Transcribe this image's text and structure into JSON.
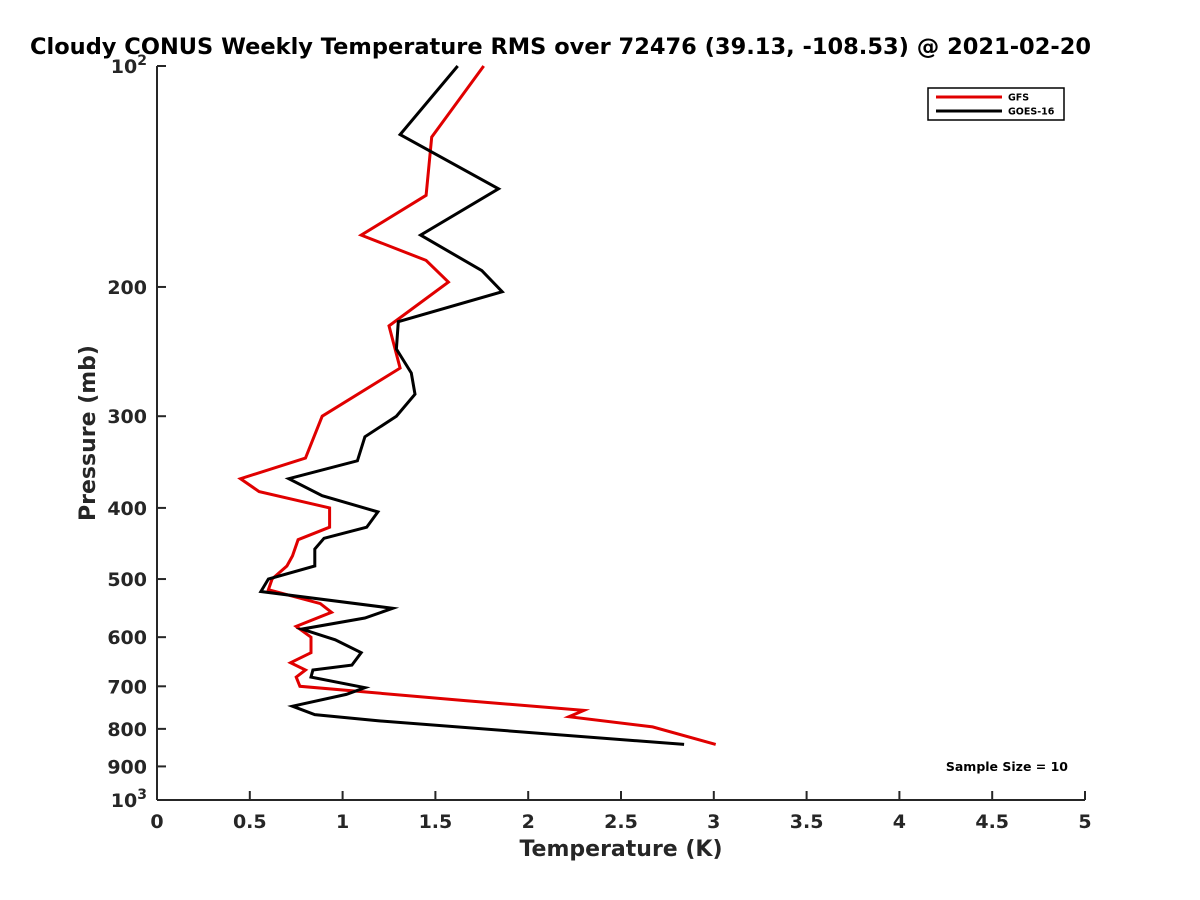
{
  "chart_data": {
    "type": "line",
    "title": "Cloudy CONUS Weekly Temperature RMS over 72476 (39.13, -108.53) @ 2021-02-20",
    "xlabel": "Temperature (K)",
    "ylabel": "Pressure (mb)",
    "xlim": [
      0,
      5
    ],
    "ylim": [
      100,
      1000
    ],
    "y_scale": "log",
    "y_reversed": true,
    "grid": false,
    "legend_position": "top-right",
    "x_ticks": [
      0,
      0.5,
      1,
      1.5,
      2,
      2.5,
      3,
      3.5,
      4,
      4.5,
      5
    ],
    "x_tick_labels": [
      "0",
      "0.5",
      "1",
      "1.5",
      "2",
      "2.5",
      "3",
      "3.5",
      "4",
      "4.5",
      "5"
    ],
    "y_ticks": [
      100,
      200,
      300,
      400,
      500,
      600,
      700,
      800,
      900,
      1000
    ],
    "y_tick_labels": [
      {
        "base": "10",
        "exp": "2"
      },
      {
        "base": "200",
        "exp": ""
      },
      {
        "base": "300",
        "exp": ""
      },
      {
        "base": "400",
        "exp": ""
      },
      {
        "base": "500",
        "exp": ""
      },
      {
        "base": "600",
        "exp": ""
      },
      {
        "base": "700",
        "exp": ""
      },
      {
        "base": "800",
        "exp": ""
      },
      {
        "base": "900",
        "exp": ""
      },
      {
        "base": "10",
        "exp": "3"
      }
    ],
    "annotation": "Sample Size = 10",
    "series": [
      {
        "name": "GFS",
        "color": "#e00000",
        "points": [
          [
            1.76,
            100
          ],
          [
            1.48,
            125
          ],
          [
            1.45,
            150
          ],
          [
            1.1,
            170
          ],
          [
            1.45,
            184
          ],
          [
            1.57,
            197
          ],
          [
            1.25,
            226
          ],
          [
            1.31,
            258
          ],
          [
            0.89,
            300
          ],
          [
            0.8,
            342
          ],
          [
            0.45,
            365
          ],
          [
            0.55,
            380
          ],
          [
            0.93,
            400
          ],
          [
            0.93,
            425
          ],
          [
            0.76,
            442
          ],
          [
            0.73,
            465
          ],
          [
            0.7,
            480
          ],
          [
            0.62,
            500
          ],
          [
            0.6,
            517
          ],
          [
            0.88,
            540
          ],
          [
            0.94,
            555
          ],
          [
            0.75,
            580
          ],
          [
            0.83,
            600
          ],
          [
            0.83,
            630
          ],
          [
            0.72,
            650
          ],
          [
            0.8,
            665
          ],
          [
            0.75,
            680
          ],
          [
            0.77,
            700
          ],
          [
            1.66,
            732
          ],
          [
            2.3,
            755
          ],
          [
            2.22,
            770
          ],
          [
            2.67,
            795
          ],
          [
            3.01,
            840
          ]
        ]
      },
      {
        "name": "GOES-16",
        "color": "#000000",
        "points": [
          [
            1.62,
            100
          ],
          [
            1.31,
            124
          ],
          [
            1.84,
            147
          ],
          [
            1.42,
            170
          ],
          [
            1.75,
            190
          ],
          [
            1.86,
            203
          ],
          [
            1.3,
            223
          ],
          [
            1.29,
            243
          ],
          [
            1.37,
            262
          ],
          [
            1.39,
            280
          ],
          [
            1.29,
            300
          ],
          [
            1.12,
            320
          ],
          [
            1.08,
            345
          ],
          [
            0.71,
            365
          ],
          [
            0.89,
            385
          ],
          [
            1.19,
            405
          ],
          [
            1.13,
            425
          ],
          [
            0.9,
            440
          ],
          [
            0.85,
            455
          ],
          [
            0.85,
            480
          ],
          [
            0.6,
            500
          ],
          [
            0.56,
            520
          ],
          [
            1.27,
            548
          ],
          [
            1.12,
            565
          ],
          [
            0.78,
            585
          ],
          [
            0.96,
            605
          ],
          [
            1.1,
            630
          ],
          [
            1.05,
            655
          ],
          [
            0.84,
            665
          ],
          [
            0.83,
            680
          ],
          [
            1.12,
            703
          ],
          [
            1.02,
            718
          ],
          [
            0.73,
            745
          ],
          [
            0.85,
            765
          ],
          [
            1.19,
            780
          ],
          [
            2.84,
            840
          ]
        ]
      }
    ]
  }
}
